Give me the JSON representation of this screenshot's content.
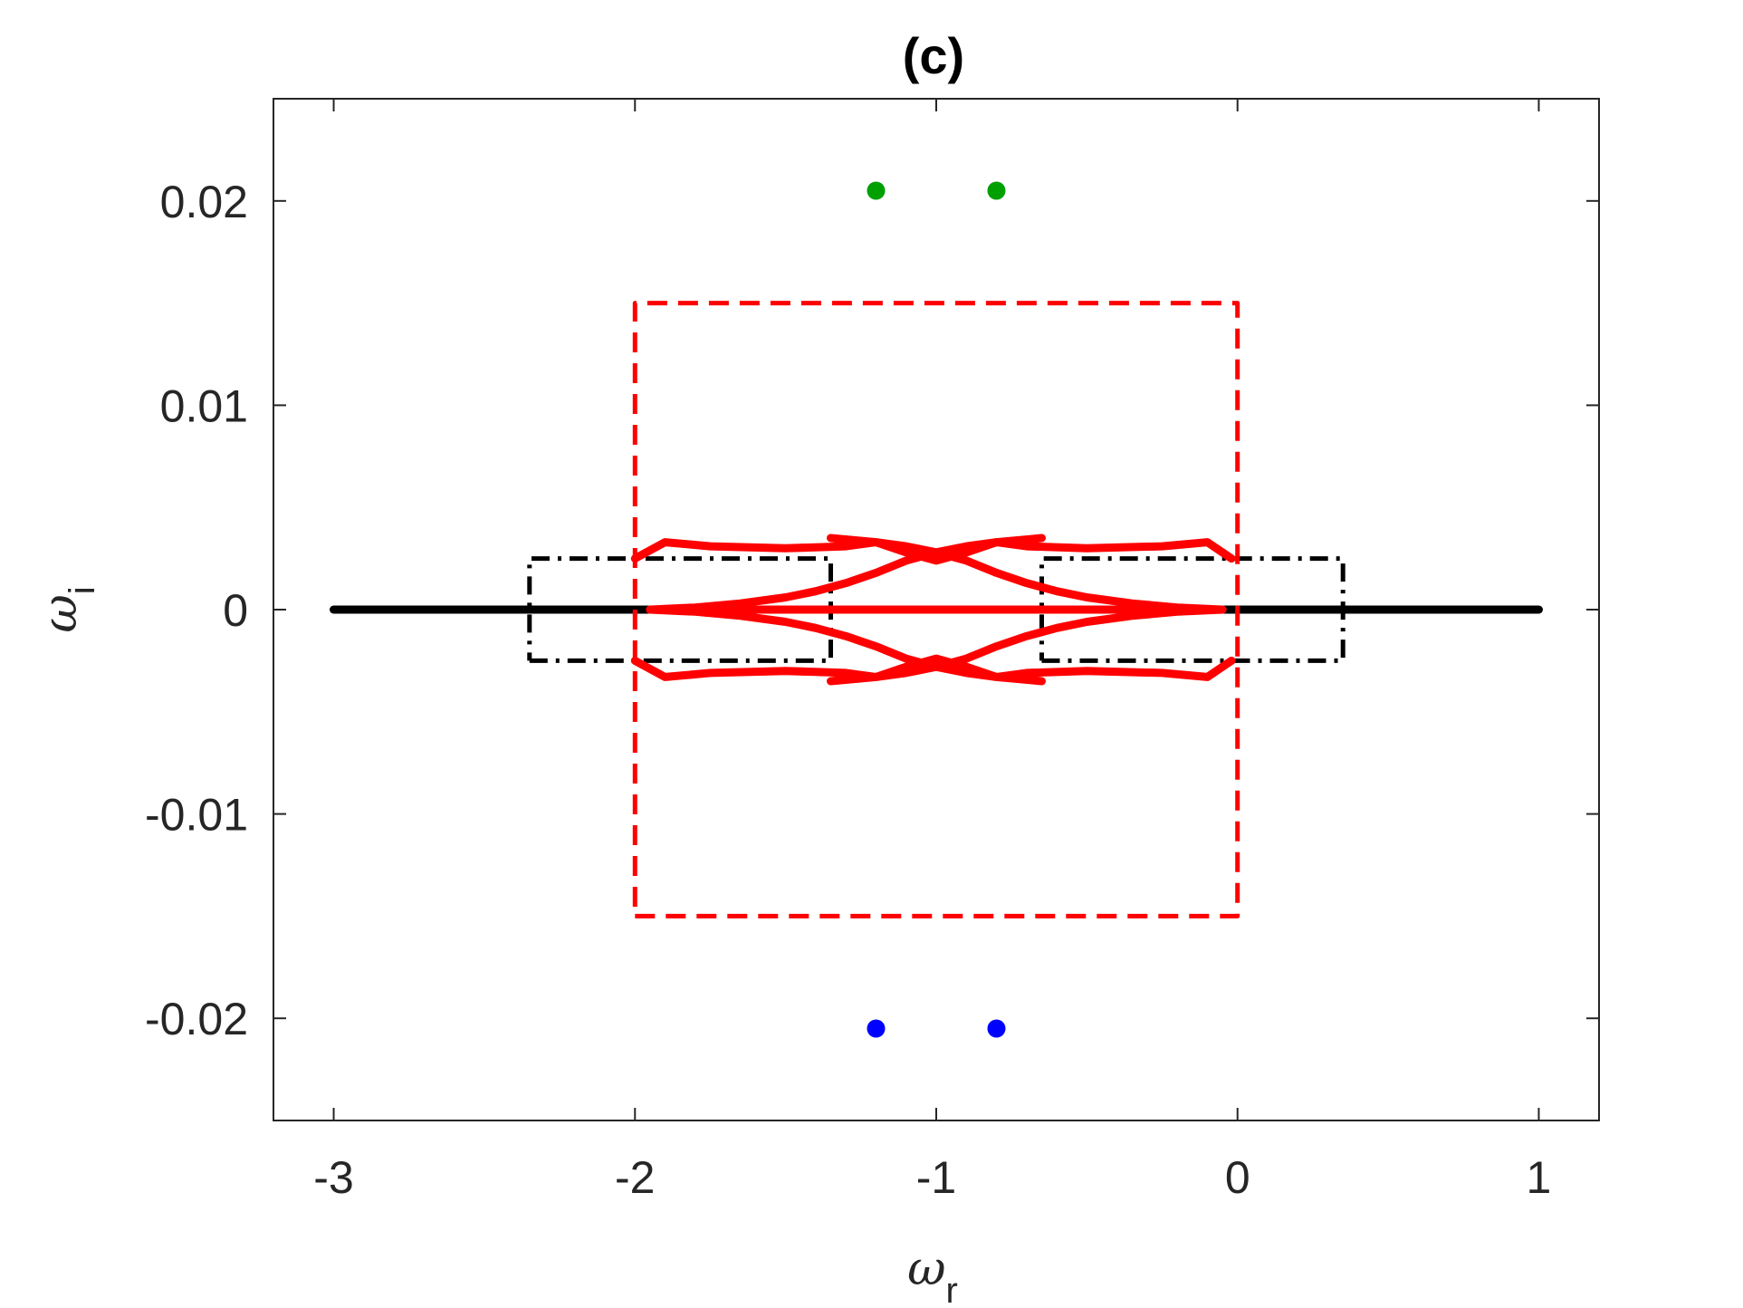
{
  "chart_data": {
    "type": "line",
    "title": "(c)",
    "xlabel": {
      "symbol": "ω",
      "subscript": "r"
    },
    "ylabel": {
      "symbol": "ω",
      "subscript": "i"
    },
    "xlim": [
      -3.2,
      1.2
    ],
    "ylim": [
      -0.025,
      0.025
    ],
    "xticks": [
      -3,
      -2,
      -1,
      0,
      1
    ],
    "xtick_labels": [
      "-3",
      "-2",
      "-1",
      "0",
      "1"
    ],
    "yticks": [
      -0.02,
      -0.01,
      0,
      0.01,
      0.02
    ],
    "ytick_labels": [
      "-0.02",
      "-0.01",
      "0",
      "0.01",
      "0.02"
    ],
    "grid": false,
    "legend": "none",
    "colors": {
      "black": "#000000",
      "red": "#ff0000",
      "blue": "#0000ff",
      "green": "#00a000"
    },
    "series": [
      {
        "style": "solid",
        "color": "#000000",
        "x": [
          -3.0,
          1.0
        ],
        "y": [
          0,
          0
        ]
      },
      {
        "style": "dash-dot",
        "color": "#000000",
        "x": [
          -2.35,
          -1.35,
          -1.35,
          -2.35,
          -2.35
        ],
        "y": [
          -0.0025,
          -0.0025,
          0.0025,
          0.0025,
          -0.0025
        ]
      },
      {
        "style": "dash-dot",
        "color": "#000000",
        "x": [
          -0.65,
          0.35,
          0.35,
          -0.65,
          -0.65
        ],
        "y": [
          -0.0025,
          -0.0025,
          0.0025,
          0.0025,
          -0.0025
        ]
      },
      {
        "style": "dashed",
        "color": "#ff0000",
        "x": [
          -2.0,
          0.0,
          0.0,
          -2.0,
          -2.0
        ],
        "y": [
          -0.015,
          -0.015,
          0.015,
          0.015,
          -0.015
        ]
      },
      {
        "style": "dashed",
        "color": "#0000ff",
        "x": [
          -1.27,
          -0.73
        ],
        "y": [
          0,
          0
        ]
      },
      {
        "style": "thick",
        "color": "#ff0000",
        "x": [
          -2.0,
          -1.9,
          -1.75,
          -1.5,
          -1.3,
          -1.2,
          -1.1,
          -1.0,
          -0.9,
          -0.8,
          -0.7,
          -0.5,
          -0.25,
          -0.1,
          -0.02
        ],
        "y": [
          0.0025,
          0.0033,
          0.0031,
          0.003,
          0.0031,
          0.0033,
          0.0028,
          0.0024,
          0.0028,
          0.0033,
          0.0031,
          0.003,
          0.0031,
          0.0033,
          0.0025
        ]
      },
      {
        "style": "thick",
        "color": "#ff0000",
        "x": [
          -2.0,
          -1.9,
          -1.75,
          -1.5,
          -1.3,
          -1.2,
          -1.1,
          -1.0,
          -0.9,
          -0.8,
          -0.7,
          -0.5,
          -0.25,
          -0.1,
          -0.02
        ],
        "y": [
          -0.0025,
          -0.0033,
          -0.0031,
          -0.003,
          -0.0031,
          -0.0033,
          -0.0028,
          -0.0024,
          -0.0028,
          -0.0033,
          -0.0031,
          -0.003,
          -0.0031,
          -0.0033,
          -0.0025
        ]
      },
      {
        "style": "thick",
        "color": "#ff0000",
        "x": [
          -1.95,
          -1.8,
          -1.65,
          -1.5,
          -1.4,
          -1.3,
          -1.2,
          -1.1,
          -1.0,
          -0.9,
          -0.8,
          -0.65
        ],
        "y": [
          0.0,
          0.0001,
          0.0003,
          0.0006,
          0.0009,
          0.0013,
          0.0018,
          0.0024,
          0.0028,
          0.0031,
          0.0033,
          0.0035
        ]
      },
      {
        "style": "thick",
        "color": "#ff0000",
        "x": [
          -1.95,
          -1.8,
          -1.65,
          -1.5,
          -1.4,
          -1.3,
          -1.2,
          -1.1,
          -1.0,
          -0.9,
          -0.8,
          -0.65
        ],
        "y": [
          0.0,
          -0.0001,
          -0.0003,
          -0.0006,
          -0.0009,
          -0.0013,
          -0.0018,
          -0.0024,
          -0.0028,
          -0.0031,
          -0.0033,
          -0.0035
        ]
      },
      {
        "style": "thick",
        "color": "#ff0000",
        "x": [
          -0.05,
          -0.2,
          -0.35,
          -0.5,
          -0.6,
          -0.7,
          -0.8,
          -0.9,
          -1.0,
          -1.1,
          -1.2,
          -1.35
        ],
        "y": [
          0.0,
          0.0001,
          0.0003,
          0.0006,
          0.0009,
          0.0013,
          0.0018,
          0.0024,
          0.0028,
          0.0031,
          0.0033,
          0.0035
        ]
      },
      {
        "style": "thick",
        "color": "#ff0000",
        "x": [
          -0.05,
          -0.2,
          -0.35,
          -0.5,
          -0.6,
          -0.7,
          -0.8,
          -0.9,
          -1.0,
          -1.1,
          -1.2,
          -1.35
        ],
        "y": [
          0.0,
          -0.0001,
          -0.0003,
          -0.0006,
          -0.0009,
          -0.0013,
          -0.0018,
          -0.0024,
          -0.0028,
          -0.0031,
          -0.0033,
          -0.0035
        ]
      },
      {
        "style": "thick",
        "color": "#ff0000",
        "x": [
          -1.95,
          -0.05
        ],
        "y": [
          0,
          0
        ]
      }
    ],
    "points": [
      {
        "x": -1.2,
        "y": 0.0205,
        "color": "#00a000"
      },
      {
        "x": -0.8,
        "y": 0.0205,
        "color": "#00a000"
      },
      {
        "x": -1.2,
        "y": -0.0205,
        "color": "#0000ff"
      },
      {
        "x": -0.8,
        "y": -0.0205,
        "color": "#0000ff"
      }
    ]
  }
}
